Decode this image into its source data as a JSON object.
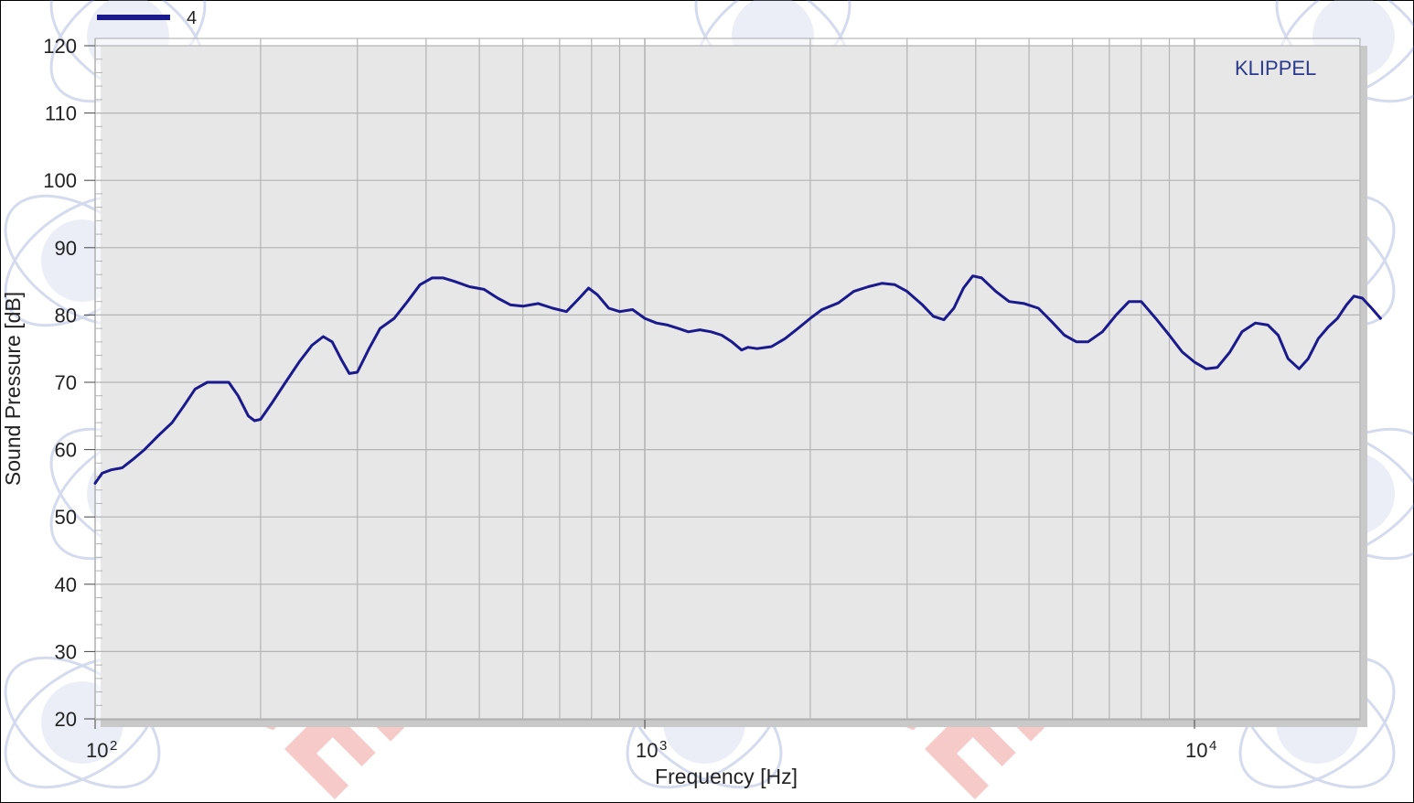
{
  "chart_data": {
    "type": "line",
    "brand_label": "KLIPPEL",
    "xlabel": "Frequency  [Hz]",
    "ylabel": "Sound Pressure  [dB]",
    "x_scale": "log",
    "xlim": [
      100,
      20000
    ],
    "ylim": [
      20,
      120
    ],
    "y_ticks": [
      20,
      30,
      40,
      50,
      60,
      70,
      80,
      90,
      100,
      110,
      120
    ],
    "x_tick_labels": [
      {
        "base": "10",
        "exp": "2",
        "value": 100
      },
      {
        "base": "10",
        "exp": "3",
        "value": 1000
      },
      {
        "base": "10",
        "exp": "4",
        "value": 10000
      }
    ],
    "grid": true,
    "legend_position": "top-left",
    "series": [
      {
        "name": "4",
        "color": "#1a1a8c",
        "points": [
          [
            100,
            55
          ],
          [
            103,
            56.5
          ],
          [
            107,
            57
          ],
          [
            112,
            57.3
          ],
          [
            117,
            58.5
          ],
          [
            123,
            60
          ],
          [
            130,
            62
          ],
          [
            138,
            64
          ],
          [
            145,
            66.5
          ],
          [
            152,
            69
          ],
          [
            160,
            70
          ],
          [
            168,
            70
          ],
          [
            175,
            70
          ],
          [
            182,
            68
          ],
          [
            190,
            65
          ],
          [
            195,
            64.3
          ],
          [
            200,
            64.5
          ],
          [
            210,
            67
          ],
          [
            222,
            70
          ],
          [
            235,
            73
          ],
          [
            248,
            75.5
          ],
          [
            260,
            76.8
          ],
          [
            270,
            76
          ],
          [
            280,
            73.5
          ],
          [
            290,
            71.3
          ],
          [
            300,
            71.5
          ],
          [
            315,
            75
          ],
          [
            330,
            78
          ],
          [
            350,
            79.5
          ],
          [
            370,
            82
          ],
          [
            390,
            84.5
          ],
          [
            410,
            85.5
          ],
          [
            430,
            85.5
          ],
          [
            450,
            85
          ],
          [
            480,
            84.2
          ],
          [
            510,
            83.8
          ],
          [
            540,
            82.5
          ],
          [
            570,
            81.5
          ],
          [
            600,
            81.3
          ],
          [
            640,
            81.7
          ],
          [
            680,
            81
          ],
          [
            720,
            80.5
          ],
          [
            760,
            82.5
          ],
          [
            790,
            84
          ],
          [
            820,
            83
          ],
          [
            860,
            81
          ],
          [
            900,
            80.5
          ],
          [
            950,
            80.8
          ],
          [
            1000,
            79.5
          ],
          [
            1050,
            78.8
          ],
          [
            1100,
            78.5
          ],
          [
            1150,
            78
          ],
          [
            1200,
            77.5
          ],
          [
            1260,
            77.8
          ],
          [
            1320,
            77.5
          ],
          [
            1380,
            77
          ],
          [
            1440,
            76
          ],
          [
            1500,
            74.8
          ],
          [
            1540,
            75.2
          ],
          [
            1600,
            75
          ],
          [
            1700,
            75.3
          ],
          [
            1800,
            76.5
          ],
          [
            1900,
            78
          ],
          [
            2000,
            79.5
          ],
          [
            2100,
            80.8
          ],
          [
            2250,
            81.8
          ],
          [
            2400,
            83.5
          ],
          [
            2550,
            84.2
          ],
          [
            2700,
            84.7
          ],
          [
            2850,
            84.5
          ],
          [
            3000,
            83.5
          ],
          [
            3200,
            81.5
          ],
          [
            3350,
            79.8
          ],
          [
            3500,
            79.3
          ],
          [
            3650,
            81
          ],
          [
            3800,
            84
          ],
          [
            3950,
            85.8
          ],
          [
            4100,
            85.5
          ],
          [
            4350,
            83.5
          ],
          [
            4600,
            82
          ],
          [
            4900,
            81.7
          ],
          [
            5200,
            81
          ],
          [
            5500,
            79
          ],
          [
            5800,
            77
          ],
          [
            6100,
            76
          ],
          [
            6400,
            76
          ],
          [
            6800,
            77.5
          ],
          [
            7200,
            80
          ],
          [
            7600,
            82
          ],
          [
            8000,
            82
          ],
          [
            8500,
            79.5
          ],
          [
            9000,
            77
          ],
          [
            9500,
            74.5
          ],
          [
            10000,
            73
          ],
          [
            10500,
            72
          ],
          [
            11000,
            72.2
          ],
          [
            11600,
            74.5
          ],
          [
            12200,
            77.5
          ],
          [
            12900,
            78.8
          ],
          [
            13600,
            78.5
          ],
          [
            14200,
            77
          ],
          [
            14800,
            73.5
          ],
          [
            15500,
            72
          ],
          [
            16100,
            73.5
          ],
          [
            16800,
            76.5
          ],
          [
            17500,
            78.2
          ],
          [
            18200,
            79.5
          ],
          [
            18900,
            81.5
          ],
          [
            19500,
            82.8
          ],
          [
            20200,
            82.5
          ],
          [
            21000,
            81
          ],
          [
            21800,
            79.5
          ]
        ]
      }
    ]
  }
}
